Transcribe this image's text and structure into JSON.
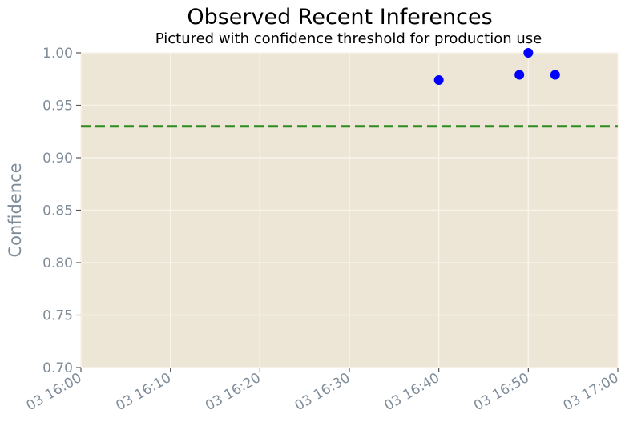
{
  "chart_data": {
    "type": "scatter",
    "title": "Observed Recent Inferences",
    "subtitle": "Pictured with confidence threshold for production use",
    "xlabel": "",
    "ylabel": "Confidence",
    "xlim": [
      "03 16:00",
      "03 17:00"
    ],
    "ylim": [
      0.7,
      1.0
    ],
    "x_ticks": [
      "03 16:00",
      "03 16:10",
      "03 16:20",
      "03 16:30",
      "03 16:40",
      "03 16:50",
      "03 17:00"
    ],
    "y_ticks": [
      "0.70",
      "0.75",
      "0.80",
      "0.85",
      "0.90",
      "0.95",
      "1.00"
    ],
    "grid": true,
    "points": [
      {
        "x": "03 16:40",
        "y": 0.974
      },
      {
        "x": "03 16:49",
        "y": 0.979
      },
      {
        "x": "03 16:50",
        "y": 1.0
      },
      {
        "x": "03 16:53",
        "y": 0.979
      }
    ],
    "threshold": 0.93,
    "colors": {
      "background": "#ede6d6",
      "grid": "#f8f4ea",
      "points": "#0000ff",
      "threshold": "#2e8b22",
      "tick_text": "#7f8c99"
    }
  }
}
